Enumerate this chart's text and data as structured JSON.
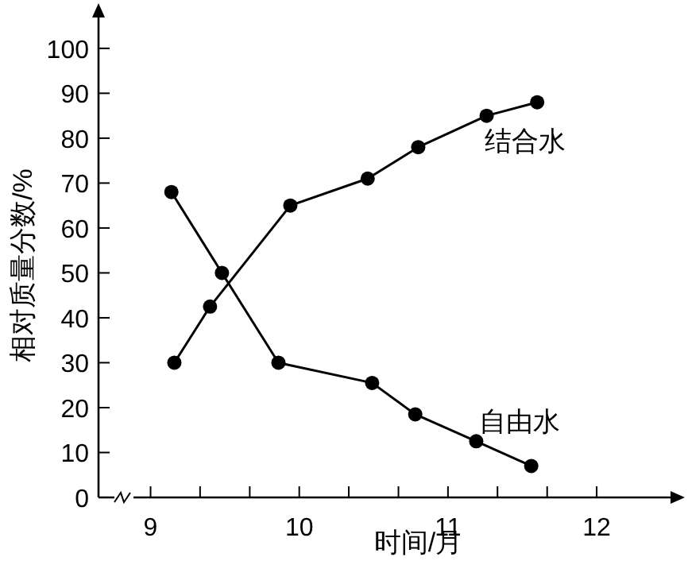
{
  "chart_data": {
    "type": "line",
    "xlabel": "时间/月",
    "ylabel": "相对质量分数/%",
    "xlim": [
      8.65,
      12.55
    ],
    "ylim": [
      0,
      109
    ],
    "xticks": [
      9,
      {
        "value": 9.333,
        "label": null
      },
      {
        "value": 9.667,
        "label": null
      },
      10,
      {
        "value": 10.333,
        "label": null
      },
      {
        "value": 10.667,
        "label": null
      },
      11,
      {
        "value": 11.333,
        "label": null
      },
      {
        "value": 11.667,
        "label": null
      },
      12
    ],
    "yticks": [
      0,
      10,
      20,
      30,
      40,
      50,
      60,
      70,
      80,
      90,
      100
    ],
    "marker": "circle",
    "line_style": "solid",
    "grid": false,
    "series": [
      {
        "name": "结合水",
        "color": "#000000",
        "x": [
          9.16,
          9.4,
          9.94,
          10.46,
          10.8,
          11.26,
          11.6
        ],
        "values": [
          30,
          42.5,
          65,
          71,
          78,
          85,
          88
        ]
      },
      {
        "name": "自由水",
        "color": "#000000",
        "x": [
          9.14,
          9.48,
          9.86,
          10.49,
          10.78,
          11.19,
          11.56
        ],
        "values": [
          68,
          50,
          30,
          25.5,
          18.5,
          12.5,
          7
        ]
      }
    ]
  }
}
